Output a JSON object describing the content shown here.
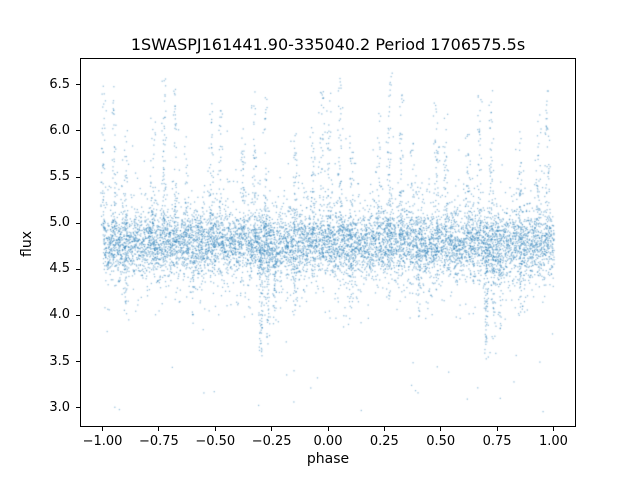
{
  "chart_data": {
    "type": "scatter",
    "title": "1SWASPJ161441.90-335040.2 Period 1706575.5s",
    "xlabel": "phase",
    "ylabel": "flux",
    "xlim": [
      -1.1,
      1.1
    ],
    "ylim": [
      2.79,
      6.79
    ],
    "grid": false,
    "legend": "none",
    "xticks": [
      {
        "value": -1.0,
        "label": "−1.00"
      },
      {
        "value": -0.75,
        "label": "−0.75"
      },
      {
        "value": -0.5,
        "label": "−0.50"
      },
      {
        "value": -0.25,
        "label": "−0.25"
      },
      {
        "value": 0.0,
        "label": "0.00"
      },
      {
        "value": 0.25,
        "label": "0.25"
      },
      {
        "value": 0.5,
        "label": "0.50"
      },
      {
        "value": 0.75,
        "label": "0.75"
      },
      {
        "value": 1.0,
        "label": "1.00"
      }
    ],
    "yticks": [
      {
        "value": 3.0,
        "label": "3.0"
      },
      {
        "value": 3.5,
        "label": "3.5"
      },
      {
        "value": 4.0,
        "label": "4.0"
      },
      {
        "value": 4.5,
        "label": "4.5"
      },
      {
        "value": 5.0,
        "label": "5.0"
      },
      {
        "value": 5.5,
        "label": "5.5"
      },
      {
        "value": 6.0,
        "label": "6.0"
      },
      {
        "value": 6.5,
        "label": "6.5"
      }
    ],
    "marker": {
      "color": "#1f77b4",
      "alpha": 0.45,
      "size": 1.3
    },
    "description": "Phase-folded photometric light curve; dense noisy band of flux ~4.8 across phase -1..1 with repeated vertical flare streaks up to ~6.65 and eclipse-like dips down to ~3.55 (pattern duplicated at phase and phase-1), sparse faint outliers down to ~2.95",
    "generator": {
      "seed": 20240613,
      "base": {
        "n": 6000,
        "mean": 4.78,
        "sd": 0.16
      },
      "broad": {
        "n": 2300,
        "mean": 4.8,
        "sd": 0.34
      },
      "low_outliers": {
        "n": 26,
        "ymin": 2.93,
        "ymax": 3.6
      },
      "phase_jitter_sd": 0.006,
      "streaks": [
        {
          "p": 0.0,
          "from": 4.9,
          "to": 6.6,
          "n": 55
        },
        {
          "p": 0.05,
          "from": 4.9,
          "to": 6.55,
          "n": 50
        },
        {
          "p": 0.1,
          "from": 4.9,
          "to": 6.0,
          "n": 40
        },
        {
          "p": 0.1,
          "from": 4.6,
          "to": 4.0,
          "n": 30
        },
        {
          "p": 0.22,
          "from": 4.9,
          "to": 6.2,
          "n": 40
        },
        {
          "p": 0.27,
          "from": 4.9,
          "to": 6.65,
          "n": 60
        },
        {
          "p": 0.32,
          "from": 4.9,
          "to": 6.5,
          "n": 50
        },
        {
          "p": 0.37,
          "from": 4.9,
          "to": 5.9,
          "n": 30
        },
        {
          "p": 0.4,
          "from": 4.6,
          "to": 3.95,
          "n": 30
        },
        {
          "p": 0.48,
          "from": 4.9,
          "to": 6.3,
          "n": 50
        },
        {
          "p": 0.52,
          "from": 4.9,
          "to": 6.2,
          "n": 40
        },
        {
          "p": 0.62,
          "from": 4.9,
          "to": 6.0,
          "n": 40
        },
        {
          "p": 0.67,
          "from": 4.9,
          "to": 6.5,
          "n": 50
        },
        {
          "p": 0.7,
          "from": 4.7,
          "to": 3.55,
          "n": 90
        },
        {
          "p": 0.72,
          "from": 4.9,
          "to": 6.4,
          "n": 40
        },
        {
          "p": 0.73,
          "from": 4.7,
          "to": 3.7,
          "n": 50
        },
        {
          "p": 0.76,
          "from": 4.6,
          "to": 3.85,
          "n": 40
        },
        {
          "p": 0.85,
          "from": 4.9,
          "to": 6.0,
          "n": 40
        },
        {
          "p": 0.85,
          "from": 4.6,
          "to": 3.95,
          "n": 30
        },
        {
          "p": 0.93,
          "from": 4.9,
          "to": 6.1,
          "n": 40
        },
        {
          "p": 0.97,
          "from": 4.9,
          "to": 6.5,
          "n": 45
        }
      ]
    }
  }
}
